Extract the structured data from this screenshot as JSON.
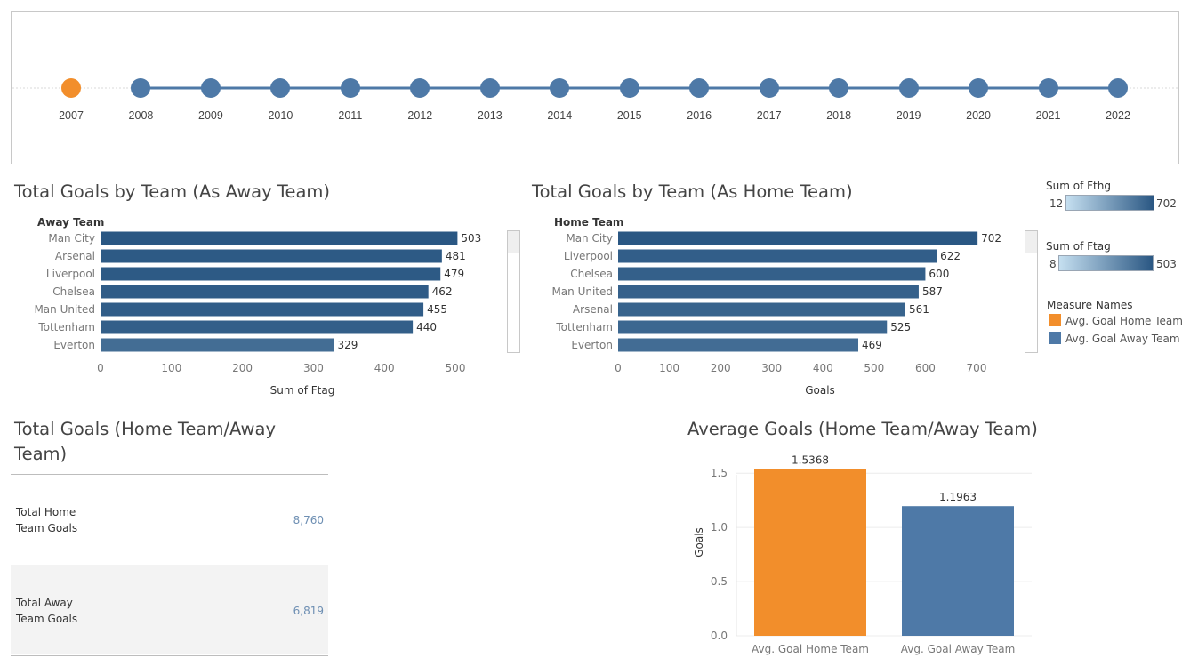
{
  "timeline": {
    "years": [
      "2007",
      "2008",
      "2009",
      "2010",
      "2011",
      "2012",
      "2013",
      "2014",
      "2015",
      "2016",
      "2017",
      "2018",
      "2019",
      "2020",
      "2021",
      "2022"
    ],
    "selected": "2007",
    "selected_color": "#f28e2b",
    "dot_color": "#4e79a7"
  },
  "away_chart": {
    "title": "Total Goals by Team (As Away Team)",
    "row_header": "Away Team",
    "xlabel": "Sum of Ftag"
  },
  "home_chart": {
    "title": "Total Goals by Team (As Home Team)",
    "row_header": "Home Team",
    "xlabel": "Goals"
  },
  "legends": {
    "fthg": {
      "title": "Sum of Fthg",
      "min": "12",
      "max": "702"
    },
    "ftag": {
      "title": "Sum of Ftag",
      "min": "8",
      "max": "503"
    },
    "measures": {
      "title": "Measure Names",
      "items": [
        {
          "label": "Avg. Goal Home Team",
          "color": "#f28e2b"
        },
        {
          "label": "Avg. Goal Away Team",
          "color": "#4e79a7"
        }
      ]
    }
  },
  "totals": {
    "title": "Total Goals (Home Team/Away Team)",
    "rows": [
      {
        "label_line1": "Total Home",
        "label_line2": "Team Goals",
        "value": "8,760"
      },
      {
        "label_line1": "Total Away",
        "label_line2": "Team Goals",
        "value": "6,819"
      }
    ]
  },
  "avg_chart": {
    "title": "Average Goals (Home Team/Away Team)",
    "ylabel": "Goals"
  },
  "chart_data": [
    {
      "type": "bar",
      "orientation": "horizontal",
      "title": "Total Goals by Team (As Away Team)",
      "categories": [
        "Man City",
        "Arsenal",
        "Liverpool",
        "Chelsea",
        "Man United",
        "Tottenham",
        "Everton"
      ],
      "values": [
        503,
        481,
        479,
        462,
        455,
        440,
        329
      ],
      "xlabel": "Sum of Ftag",
      "ylabel": "Away Team",
      "xlim": [
        0,
        500
      ],
      "xticks": [
        0,
        100,
        200,
        300,
        400,
        500
      ],
      "color_scale": {
        "min": 8,
        "max": 503,
        "low": "#c5dff0",
        "high": "#2a5783"
      }
    },
    {
      "type": "bar",
      "orientation": "horizontal",
      "title": "Total Goals by Team (As Home Team)",
      "categories": [
        "Man City",
        "Liverpool",
        "Chelsea",
        "Man United",
        "Arsenal",
        "Tottenham",
        "Everton"
      ],
      "values": [
        702,
        622,
        600,
        587,
        561,
        525,
        469
      ],
      "xlabel": "Goals",
      "ylabel": "Home Team",
      "xlim": [
        0,
        700
      ],
      "xticks": [
        0,
        100,
        200,
        300,
        400,
        500,
        600,
        700
      ],
      "color_scale": {
        "min": 12,
        "max": 702,
        "low": "#c5dff0",
        "high": "#2a5783"
      }
    },
    {
      "type": "bar",
      "orientation": "vertical",
      "title": "Average Goals (Home Team/Away Team)",
      "categories": [
        "Avg. Goal Home Team",
        "Avg. Goal Away Team"
      ],
      "values": [
        1.5368,
        1.1963
      ],
      "colors": [
        "#f28e2b",
        "#4e79a7"
      ],
      "ylabel": "Goals",
      "ylim": [
        0,
        1.6
      ],
      "yticks": [
        "0.0",
        "0.5",
        "1.0",
        "1.5"
      ],
      "grid": true
    }
  ]
}
